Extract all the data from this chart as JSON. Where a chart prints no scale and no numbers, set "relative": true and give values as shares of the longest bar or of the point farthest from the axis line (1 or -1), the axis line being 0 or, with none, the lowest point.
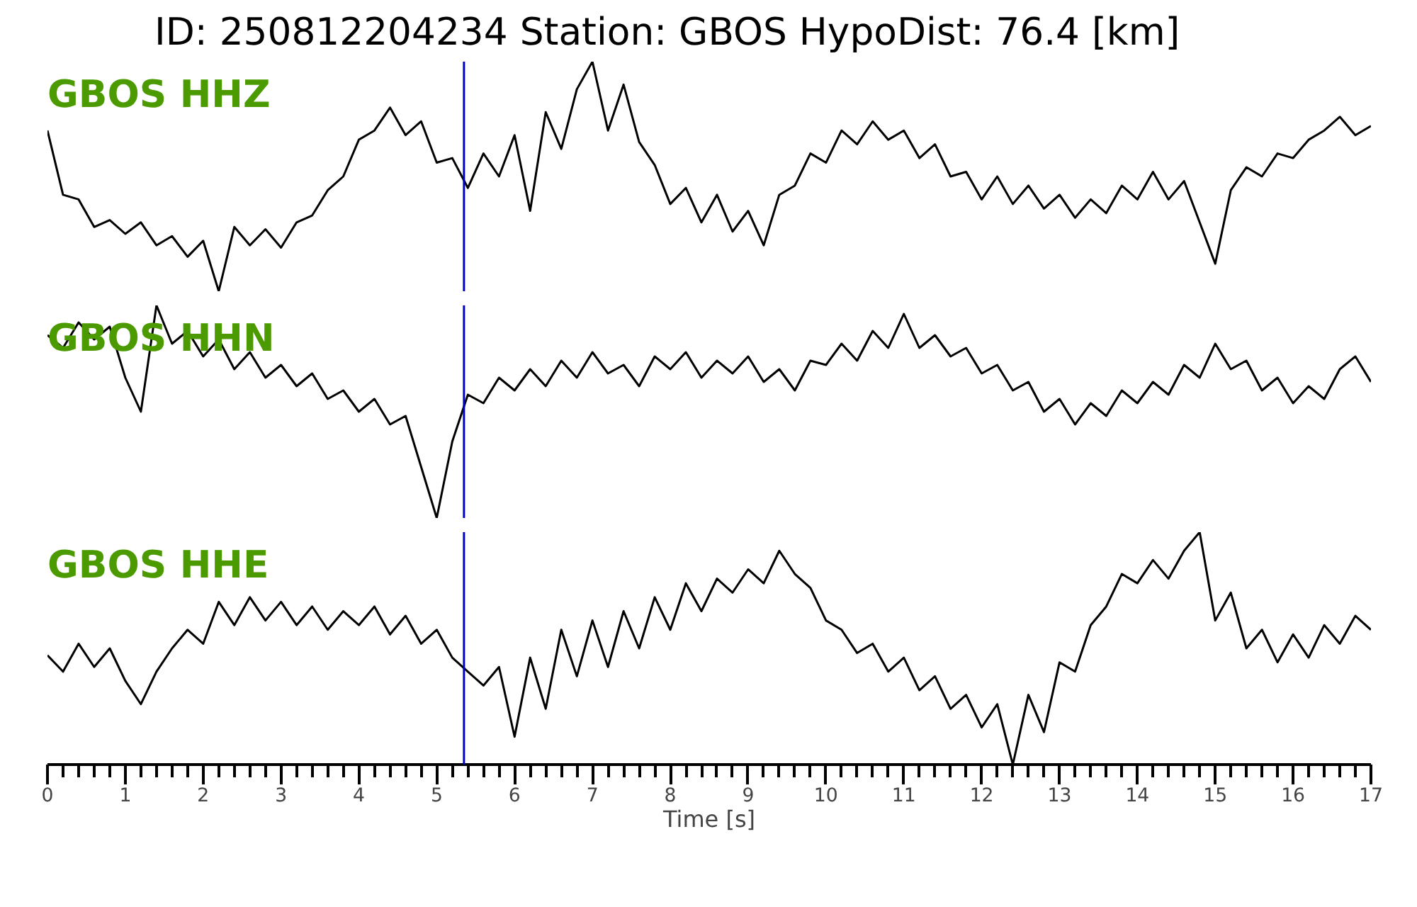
{
  "chart_data": [
    {
      "type": "line",
      "title": "ID: 250812204234   Station: GBOS   HypoDist:    76.4 [km]",
      "annotations": [
        "GBOS HHZ"
      ],
      "relative": true,
      "tick_labels": false,
      "grid": false,
      "xlim": [
        0,
        17
      ],
      "ref_lines": [
        {
          "axis": "x",
          "value": 5.35,
          "color": "#0000cc"
        }
      ],
      "series": [
        {
          "color": "#000000",
          "x": [
            0,
            0.2,
            0.4,
            0.6,
            0.8,
            1,
            1.2,
            1.4,
            1.6,
            1.8,
            2,
            2.2,
            2.4,
            2.6,
            2.8,
            3,
            3.2,
            3.4,
            3.6,
            3.8,
            4,
            4.2,
            4.4,
            4.6,
            4.8,
            5,
            5.2,
            5.4,
            5.6,
            5.8,
            6,
            6.2,
            6.4,
            6.6,
            6.8,
            7,
            7.2,
            7.4,
            7.6,
            7.8,
            8,
            8.2,
            8.4,
            8.6,
            8.8,
            9,
            9.2,
            9.4,
            9.6,
            9.8,
            10,
            10.2,
            10.4,
            10.6,
            10.8,
            11,
            11.2,
            11.4,
            11.6,
            11.8,
            12,
            12.2,
            12.4,
            12.6,
            12.8,
            13,
            13.2,
            13.4,
            13.6,
            13.8,
            14,
            14.2,
            14.4,
            14.6,
            14.8,
            15,
            15.2,
            15.4,
            15.6,
            15.8,
            16,
            16.2,
            16.4,
            16.6,
            16.8,
            17
          ],
          "values": [
            0.7,
            0.42,
            0.4,
            0.28,
            0.31,
            0.25,
            0.3,
            0.2,
            0.24,
            0.15,
            0.22,
            0.0,
            0.28,
            0.2,
            0.27,
            0.19,
            0.3,
            0.33,
            0.44,
            0.5,
            0.66,
            0.7,
            0.8,
            0.68,
            0.74,
            0.56,
            0.58,
            0.45,
            0.6,
            0.5,
            0.68,
            0.35,
            0.78,
            0.62,
            0.88,
            1.0,
            0.7,
            0.9,
            0.65,
            0.55,
            0.38,
            0.45,
            0.3,
            0.42,
            0.26,
            0.35,
            0.2,
            0.42,
            0.46,
            0.6,
            0.56,
            0.7,
            0.64,
            0.74,
            0.66,
            0.7,
            0.58,
            0.64,
            0.5,
            0.52,
            0.4,
            0.5,
            0.38,
            0.46,
            0.36,
            0.42,
            0.32,
            0.4,
            0.34,
            0.46,
            0.4,
            0.52,
            0.4,
            0.48,
            0.3,
            0.12,
            0.44,
            0.54,
            0.5,
            0.6,
            0.58,
            0.66,
            0.7,
            0.76,
            0.68,
            0.72
          ]
        }
      ]
    },
    {
      "type": "line",
      "annotations": [
        "GBOS HHN"
      ],
      "relative": true,
      "tick_labels": false,
      "grid": false,
      "xlim": [
        0,
        17
      ],
      "ref_lines": [
        {
          "axis": "x",
          "value": 5.35,
          "color": "#0000cc"
        }
      ],
      "series": [
        {
          "color": "#000000",
          "x": [
            0,
            0.2,
            0.4,
            0.6,
            0.8,
            1,
            1.2,
            1.4,
            1.6,
            1.8,
            2,
            2.2,
            2.4,
            2.6,
            2.8,
            3,
            3.2,
            3.4,
            3.6,
            3.8,
            4,
            4.2,
            4.4,
            4.6,
            4.8,
            5,
            5.2,
            5.4,
            5.6,
            5.8,
            6,
            6.2,
            6.4,
            6.6,
            6.8,
            7,
            7.2,
            7.4,
            7.6,
            7.8,
            8,
            8.2,
            8.4,
            8.6,
            8.8,
            9,
            9.2,
            9.4,
            9.6,
            9.8,
            10,
            10.2,
            10.4,
            10.6,
            10.8,
            11,
            11.2,
            11.4,
            11.6,
            11.8,
            12,
            12.2,
            12.4,
            12.6,
            12.8,
            13,
            13.2,
            13.4,
            13.6,
            13.8,
            14,
            14.2,
            14.4,
            14.6,
            14.8,
            15,
            15.2,
            15.4,
            15.6,
            15.8,
            16,
            16.2,
            16.4,
            16.6,
            16.8,
            17
          ],
          "values": [
            0.86,
            0.8,
            0.92,
            0.84,
            0.9,
            0.66,
            0.5,
            1.0,
            0.82,
            0.88,
            0.76,
            0.84,
            0.7,
            0.78,
            0.66,
            0.72,
            0.62,
            0.68,
            0.56,
            0.6,
            0.5,
            0.56,
            0.44,
            0.48,
            0.24,
            0.0,
            0.36,
            0.58,
            0.54,
            0.66,
            0.6,
            0.7,
            0.62,
            0.74,
            0.66,
            0.78,
            0.68,
            0.72,
            0.62,
            0.76,
            0.7,
            0.78,
            0.66,
            0.74,
            0.68,
            0.76,
            0.64,
            0.7,
            0.6,
            0.74,
            0.72,
            0.82,
            0.74,
            0.88,
            0.8,
            0.96,
            0.8,
            0.86,
            0.76,
            0.8,
            0.68,
            0.72,
            0.6,
            0.64,
            0.5,
            0.56,
            0.44,
            0.54,
            0.48,
            0.6,
            0.54,
            0.64,
            0.58,
            0.72,
            0.66,
            0.82,
            0.7,
            0.74,
            0.6,
            0.66,
            0.54,
            0.62,
            0.56,
            0.7,
            0.76,
            0.64
          ]
        }
      ]
    },
    {
      "type": "line",
      "annotations": [
        "GBOS HHE"
      ],
      "xlabel": "Time [s]",
      "relative": true,
      "tick_labels": "x",
      "grid": false,
      "xlim": [
        0,
        17
      ],
      "ref_lines": [
        {
          "axis": "x",
          "value": 5.35,
          "color": "#0000cc"
        }
      ],
      "xticks": [
        0,
        {
          "value": 0.2,
          "label": null
        },
        {
          "value": 0.4,
          "label": null
        },
        {
          "value": 0.6,
          "label": null
        },
        {
          "value": 0.8,
          "label": null
        },
        1,
        {
          "value": 1.2,
          "label": null
        },
        {
          "value": 1.4,
          "label": null
        },
        {
          "value": 1.6,
          "label": null
        },
        {
          "value": 1.8,
          "label": null
        },
        2,
        {
          "value": 2.2,
          "label": null
        },
        {
          "value": 2.4,
          "label": null
        },
        {
          "value": 2.6,
          "label": null
        },
        {
          "value": 2.8,
          "label": null
        },
        3,
        {
          "value": 3.2,
          "label": null
        },
        {
          "value": 3.4,
          "label": null
        },
        {
          "value": 3.6,
          "label": null
        },
        {
          "value": 3.8,
          "label": null
        },
        4,
        {
          "value": 4.2,
          "label": null
        },
        {
          "value": 4.4,
          "label": null
        },
        {
          "value": 4.6,
          "label": null
        },
        {
          "value": 4.8,
          "label": null
        },
        5,
        {
          "value": 5.2,
          "label": null
        },
        {
          "value": 5.4,
          "label": null
        },
        {
          "value": 5.6,
          "label": null
        },
        {
          "value": 5.8,
          "label": null
        },
        6,
        {
          "value": 6.2,
          "label": null
        },
        {
          "value": 6.4,
          "label": null
        },
        {
          "value": 6.6,
          "label": null
        },
        {
          "value": 6.8,
          "label": null
        },
        7,
        {
          "value": 7.2,
          "label": null
        },
        {
          "value": 7.4,
          "label": null
        },
        {
          "value": 7.6,
          "label": null
        },
        {
          "value": 7.8,
          "label": null
        },
        8,
        {
          "value": 8.2,
          "label": null
        },
        {
          "value": 8.4,
          "label": null
        },
        {
          "value": 8.6,
          "label": null
        },
        {
          "value": 8.8,
          "label": null
        },
        9,
        {
          "value": 9.2,
          "label": null
        },
        {
          "value": 9.4,
          "label": null
        },
        {
          "value": 9.6,
          "label": null
        },
        {
          "value": 9.8,
          "label": null
        },
        10,
        {
          "value": 10.2,
          "label": null
        },
        {
          "value": 10.4,
          "label": null
        },
        {
          "value": 10.6,
          "label": null
        },
        {
          "value": 10.8,
          "label": null
        },
        11,
        {
          "value": 11.2,
          "label": null
        },
        {
          "value": 11.4,
          "label": null
        },
        {
          "value": 11.6,
          "label": null
        },
        {
          "value": 11.8,
          "label": null
        },
        12,
        {
          "value": 12.2,
          "label": null
        },
        {
          "value": 12.4,
          "label": null
        },
        {
          "value": 12.6,
          "label": null
        },
        {
          "value": 12.8,
          "label": null
        },
        13,
        {
          "value": 13.2,
          "label": null
        },
        {
          "value": 13.4,
          "label": null
        },
        {
          "value": 13.6,
          "label": null
        },
        {
          "value": 13.8,
          "label": null
        },
        14,
        {
          "value": 14.2,
          "label": null
        },
        {
          "value": 14.4,
          "label": null
        },
        {
          "value": 14.6,
          "label": null
        },
        {
          "value": 14.8,
          "label": null
        },
        15,
        {
          "value": 15.2,
          "label": null
        },
        {
          "value": 15.4,
          "label": null
        },
        {
          "value": 15.6,
          "label": null
        },
        {
          "value": 15.8,
          "label": null
        },
        16,
        {
          "value": 16.2,
          "label": null
        },
        {
          "value": 16.4,
          "label": null
        },
        {
          "value": 16.6,
          "label": null
        },
        {
          "value": 16.8,
          "label": null
        },
        17
      ],
      "series": [
        {
          "color": "#000000",
          "x": [
            0,
            0.2,
            0.4,
            0.6,
            0.8,
            1,
            1.2,
            1.4,
            1.6,
            1.8,
            2,
            2.2,
            2.4,
            2.6,
            2.8,
            3,
            3.2,
            3.4,
            3.6,
            3.8,
            4,
            4.2,
            4.4,
            4.6,
            4.8,
            5,
            5.2,
            5.4,
            5.6,
            5.8,
            6,
            6.2,
            6.4,
            6.6,
            6.8,
            7,
            7.2,
            7.4,
            7.6,
            7.8,
            8,
            8.2,
            8.4,
            8.6,
            8.8,
            9,
            9.2,
            9.4,
            9.6,
            9.8,
            10,
            10.2,
            10.4,
            10.6,
            10.8,
            11,
            11.2,
            11.4,
            11.6,
            11.8,
            12,
            12.2,
            12.4,
            12.6,
            12.8,
            13,
            13.2,
            13.4,
            13.6,
            13.8,
            14,
            14.2,
            14.4,
            14.6,
            14.8,
            15,
            15.2,
            15.4,
            15.6,
            15.8,
            16,
            16.2,
            16.4,
            16.6,
            16.8,
            17
          ],
          "values": [
            0.47,
            0.4,
            0.52,
            0.42,
            0.5,
            0.36,
            0.26,
            0.4,
            0.5,
            0.58,
            0.52,
            0.7,
            0.6,
            0.72,
            0.62,
            0.7,
            0.6,
            0.68,
            0.58,
            0.66,
            0.6,
            0.68,
            0.56,
            0.64,
            0.52,
            0.58,
            0.46,
            0.4,
            0.34,
            0.42,
            0.12,
            0.46,
            0.24,
            0.58,
            0.38,
            0.62,
            0.42,
            0.66,
            0.5,
            0.72,
            0.58,
            0.78,
            0.66,
            0.8,
            0.74,
            0.84,
            0.78,
            0.92,
            0.82,
            0.76,
            0.62,
            0.58,
            0.48,
            0.52,
            0.4,
            0.46,
            0.32,
            0.38,
            0.24,
            0.3,
            0.16,
            0.26,
            0.0,
            0.3,
            0.14,
            0.44,
            0.4,
            0.6,
            0.68,
            0.82,
            0.78,
            0.88,
            0.8,
            0.92,
            1.0,
            0.62,
            0.74,
            0.5,
            0.58,
            0.44,
            0.56,
            0.46,
            0.6,
            0.52,
            0.64,
            0.58
          ]
        }
      ]
    }
  ]
}
